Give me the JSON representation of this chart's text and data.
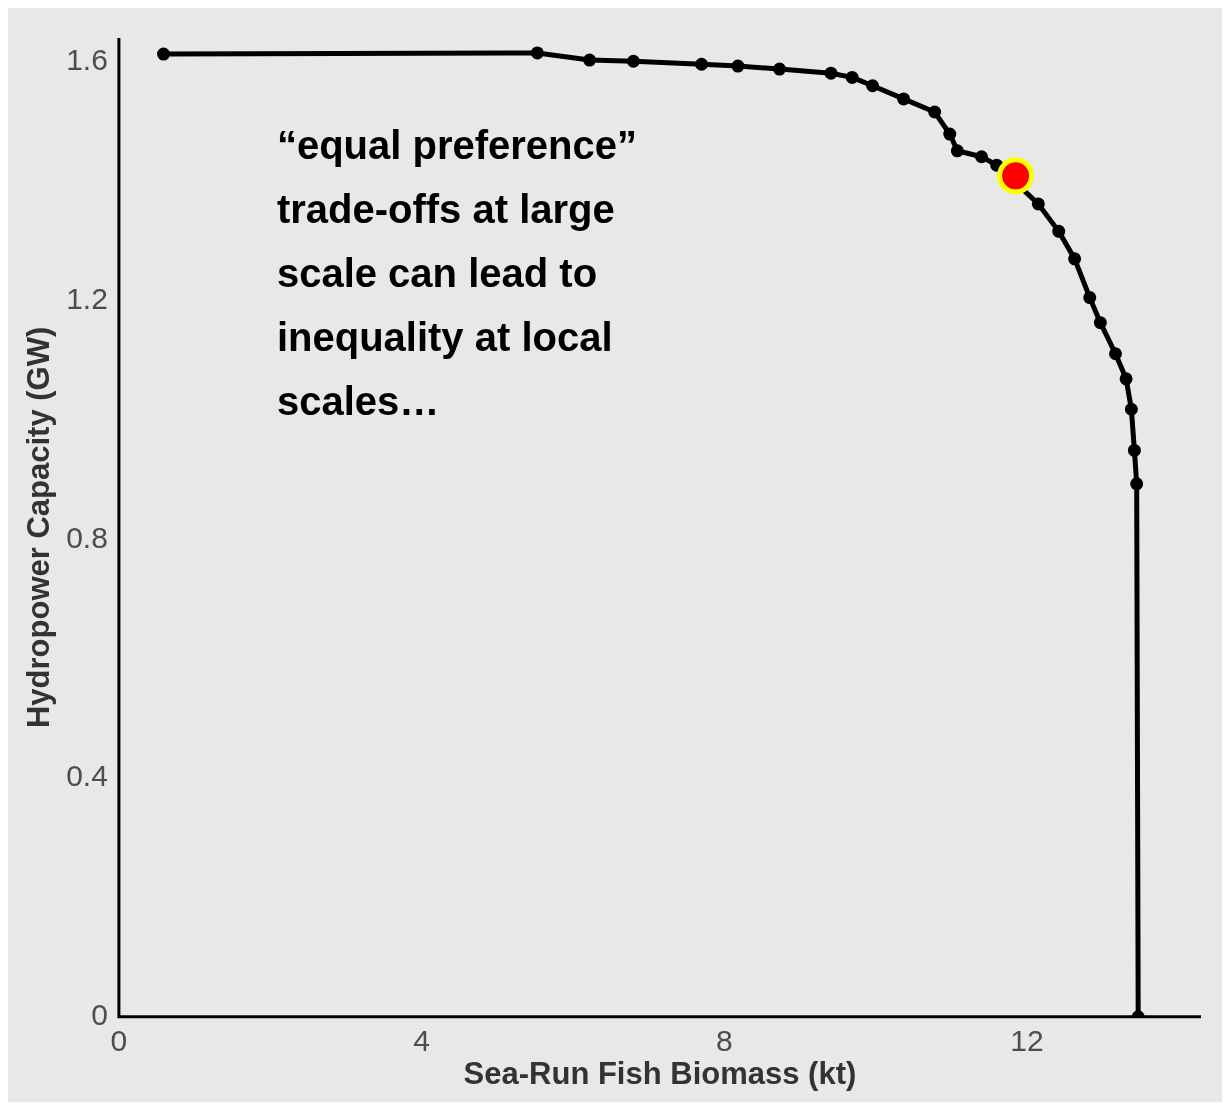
{
  "chart_data": {
    "type": "line",
    "xlabel": "Sea-Run Fish Biomass (kt)",
    "ylabel": "Hydropower Capacity (GW)",
    "xlim": [
      0,
      14.3
    ],
    "xticks": [
      0,
      4,
      8,
      12
    ],
    "ylim": [
      0,
      1.64
    ],
    "yticks": [
      0,
      0.4,
      0.8,
      1.2,
      1.6
    ],
    "grid": false,
    "legend": false,
    "marker": "circle",
    "line_style": "solid",
    "annotations": [
      "“equal preference” trade-offs at large scale can lead to inequality at local scales…"
    ],
    "series": [
      {
        "color": "#000000",
        "x": [
          0.59,
          5.53,
          6.22,
          6.8,
          7.7,
          8.18,
          8.73,
          9.41,
          9.69,
          9.96,
          10.37,
          10.78,
          10.98,
          11.08,
          11.4,
          11.6,
          12.15,
          12.42,
          12.63,
          12.83,
          12.97,
          13.17,
          13.31,
          13.38,
          13.42,
          13.45,
          13.47
        ],
        "values": [
          1.613,
          1.615,
          1.603,
          1.601,
          1.596,
          1.593,
          1.588,
          1.581,
          1.574,
          1.56,
          1.538,
          1.516,
          1.479,
          1.451,
          1.441,
          1.427,
          1.362,
          1.316,
          1.27,
          1.205,
          1.163,
          1.111,
          1.069,
          1.018,
          0.949,
          0.893,
          0
        ]
      },
      {
        "type": "scatter",
        "color": "#ff0000",
        "x": [
          11.85
        ],
        "values": [
          1.409
        ]
      }
    ]
  }
}
